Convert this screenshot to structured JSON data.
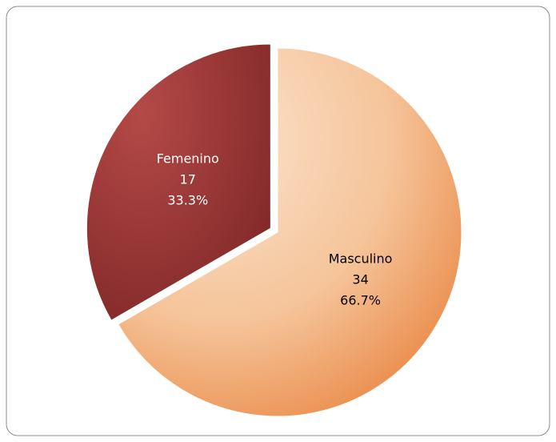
{
  "chart_data": {
    "type": "pie",
    "categories": [
      "Masculino",
      "Femenino"
    ],
    "values": [
      34,
      17
    ],
    "percentages": [
      66.7,
      33.3
    ],
    "percentage_labels": [
      "66.7%",
      "33.3%"
    ],
    "colors": [
      "#f0a56e",
      "#9c3535"
    ],
    "label_colors": [
      "#000000",
      "#ffffff"
    ],
    "exploded": [
      false,
      true
    ]
  }
}
